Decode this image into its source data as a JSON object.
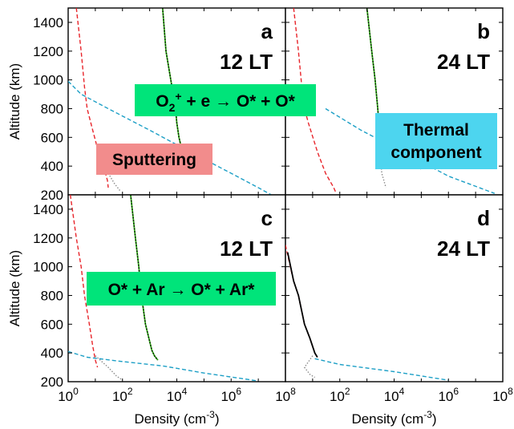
{
  "chart_data": [
    {
      "panel": "a",
      "local_time": "12 LT",
      "type": "line",
      "xlabel": "Density (cm-3)",
      "ylabel": "Altitude (km)",
      "x_scale": "log",
      "xlim": [
        1,
        100000000
      ],
      "ylim": [
        200,
        1500
      ],
      "series": [
        {
          "color": "#e8242a",
          "style": "dashed",
          "points": [
            [
              2,
              1500
            ],
            [
              3,
              1200
            ],
            [
              4,
              950
            ],
            [
              5,
              800
            ],
            [
              8,
              650
            ],
            [
              13,
              500
            ],
            [
              20,
              400
            ],
            [
              28,
              300
            ],
            [
              30,
              250
            ]
          ]
        },
        {
          "color": "#1c9fc6",
          "style": "dashed",
          "points": [
            [
              1,
              990
            ],
            [
              3,
              900
            ],
            [
              30,
              800
            ],
            [
              1000,
              650
            ],
            [
              30000,
              500
            ],
            [
              1000000,
              350
            ],
            [
              10000000,
              250
            ],
            [
              30000000,
              200
            ]
          ]
        },
        {
          "color": "#35b21b",
          "style": "solid",
          "points": [
            [
              3000,
              1500
            ],
            [
              4000,
              1200
            ],
            [
              6000,
              1000
            ],
            [
              9000,
              800
            ],
            [
              10000,
              700
            ],
            [
              12000,
              600
            ],
            [
              15000,
              520
            ],
            [
              30000,
              480
            ],
            [
              80000,
              400
            ],
            [
              150000,
              350
            ]
          ]
        },
        {
          "color": "#000000",
          "style": "dotted",
          "points": [
            [
              3000,
              1500
            ],
            [
              4000,
              1200
            ],
            [
              6000,
              1000
            ],
            [
              9000,
              800
            ],
            [
              10000,
              700
            ],
            [
              12000,
              600
            ],
            [
              15000,
              520
            ],
            [
              30000,
              480
            ],
            [
              80000,
              400
            ],
            [
              150000,
              350
            ]
          ]
        },
        {
          "color": "#8a8a8a",
          "style": "dotted",
          "points": [
            [
              30,
              350
            ],
            [
              50,
              280
            ],
            [
              80,
              230
            ]
          ]
        }
      ],
      "annotations": [
        {
          "text_parts": [
            "O",
            "2",
            "+",
            " + e → O* + O*"
          ],
          "color": "#00e47a"
        },
        {
          "text": "Sputtering",
          "color": "#f28c8c"
        }
      ]
    },
    {
      "panel": "b",
      "local_time": "24 LT",
      "type": "line",
      "xlabel": "Density (cm-3)",
      "x_scale": "log",
      "xlim": [
        1,
        100000000
      ],
      "ylim": [
        200,
        1500
      ],
      "series": [
        {
          "color": "#e8242a",
          "style": "dashed",
          "points": [
            [
              2,
              1500
            ],
            [
              3,
              1200
            ],
            [
              4,
              950
            ],
            [
              5,
              800
            ],
            [
              7,
              700
            ],
            [
              15,
              500
            ],
            [
              30,
              350
            ],
            [
              60,
              250
            ],
            [
              70,
              220
            ]
          ]
        },
        {
          "color": "#1c9fc6",
          "style": "dashed",
          "points": [
            [
              30,
              800
            ],
            [
              600,
              650
            ],
            [
              20000,
              500
            ],
            [
              1000000,
              330
            ],
            [
              50000000,
              210
            ]
          ]
        },
        {
          "color": "#35b21b",
          "style": "solid",
          "points": [
            [
              1000,
              1500
            ],
            [
              1500,
              1200
            ],
            [
              2000,
              1000
            ],
            [
              2500,
              800
            ],
            [
              3000,
              600
            ],
            [
              4000,
              500
            ]
          ]
        },
        {
          "color": "#000000",
          "style": "dotted",
          "points": [
            [
              1000,
              1500
            ],
            [
              1500,
              1200
            ],
            [
              2000,
              1000
            ],
            [
              2500,
              800
            ],
            [
              3000,
              600
            ],
            [
              4000,
              500
            ],
            [
              20000,
              420
            ],
            [
              100000,
              380
            ]
          ]
        },
        {
          "color": "#8a8a8a",
          "style": "dotted",
          "points": [
            [
              3000,
              500
            ],
            [
              3500,
              350
            ],
            [
              5000,
              250
            ]
          ]
        }
      ],
      "annotations": [
        {
          "text_lines": [
            "Thermal",
            "component"
          ],
          "color": "#4dd5ef"
        }
      ]
    },
    {
      "panel": "c",
      "local_time": "12 LT",
      "type": "line",
      "xlabel": "Density (cm-3)",
      "ylabel": "Altitude (km)",
      "x_scale": "log",
      "xlim": [
        1,
        100000000
      ],
      "ylim": [
        200,
        1500
      ],
      "series": [
        {
          "color": "#e8242a",
          "style": "dashed",
          "points": [
            [
              1.2,
              1500
            ],
            [
              2,
              1200
            ],
            [
              3,
              1000
            ],
            [
              4,
              800
            ],
            [
              6,
              600
            ],
            [
              8,
              450
            ],
            [
              10,
              350
            ],
            [
              12,
              300
            ]
          ]
        },
        {
          "color": "#1c9fc6",
          "style": "dashed",
          "points": [
            [
              1,
              410
            ],
            [
              5,
              370
            ],
            [
              100,
              340
            ],
            [
              3000,
              310
            ],
            [
              100000,
              260
            ],
            [
              10000000,
              205
            ]
          ]
        },
        {
          "color": "#35b21b",
          "style": "solid",
          "points": [
            [
              200,
              1500
            ],
            [
              300,
              1200
            ],
            [
              400,
              1000
            ],
            [
              500,
              800
            ],
            [
              700,
              600
            ],
            [
              1200,
              420
            ],
            [
              1500,
              380
            ],
            [
              2000,
              350
            ]
          ]
        },
        {
          "color": "#000000",
          "style": "dotted",
          "points": [
            [
              200,
              1500
            ],
            [
              300,
              1200
            ],
            [
              400,
              1000
            ],
            [
              500,
              800
            ],
            [
              700,
              600
            ],
            [
              1200,
              420
            ],
            [
              1500,
              380
            ],
            [
              2000,
              350
            ]
          ]
        },
        {
          "color": "#8a8a8a",
          "style": "dotted",
          "points": [
            [
              10,
              380
            ],
            [
              30,
              300
            ],
            [
              60,
              240
            ],
            [
              100,
              210
            ]
          ]
        }
      ],
      "annotations": [
        {
          "text": "O* + Ar → O* + Ar*",
          "color": "#00e47a"
        }
      ]
    },
    {
      "panel": "d",
      "local_time": "24 LT",
      "type": "line",
      "xlabel": "Density (cm-3)",
      "x_scale": "log",
      "xlim": [
        1,
        100000000
      ],
      "ylim": [
        200,
        1500
      ],
      "series": [
        {
          "color": "#e8242a",
          "style": "dashed",
          "points": [
            [
              1,
              1150
            ],
            [
              1.5,
              1000
            ],
            [
              2,
              900
            ],
            [
              3,
              800
            ],
            [
              5,
              600
            ],
            [
              8,
              500
            ],
            [
              12,
              400
            ],
            [
              15,
              370
            ]
          ]
        },
        {
          "color": "#000000",
          "style": "solid",
          "points": [
            [
              1.2,
              1100
            ],
            [
              2,
              900
            ],
            [
              3,
              800
            ],
            [
              5,
              600
            ],
            [
              8,
              500
            ],
            [
              12,
              400
            ],
            [
              15,
              370
            ]
          ]
        },
        {
          "color": "#1c9fc6",
          "style": "dashed",
          "points": [
            [
              12,
              360
            ],
            [
              100,
              320
            ],
            [
              10000,
              270
            ],
            [
              1000000,
              210
            ]
          ]
        },
        {
          "color": "#8a8a8a",
          "style": "dotted",
          "points": [
            [
              10,
              380
            ],
            [
              5,
              300
            ],
            [
              8,
              250
            ],
            [
              12,
              230
            ]
          ]
        }
      ]
    }
  ],
  "axes": {
    "y_ticks": [
      "200",
      "400",
      "600",
      "800",
      "1000",
      "1200",
      "1400"
    ],
    "y_tick_values": [
      200,
      400,
      600,
      800,
      1000,
      1200,
      1400
    ],
    "x_ticks_left": [
      {
        "base": "10",
        "exp": "0",
        "value": 1
      },
      {
        "base": "10",
        "exp": "2",
        "value": 100
      },
      {
        "base": "10",
        "exp": "4",
        "value": 10000
      },
      {
        "base": "10",
        "exp": "6",
        "value": 1000000
      },
      {
        "base": "10",
        "exp": "8",
        "value": 100000000
      }
    ],
    "x_ticks_right": [
      {
        "base": "10",
        "exp": "2",
        "value": 100
      },
      {
        "base": "10",
        "exp": "4",
        "value": 10000
      },
      {
        "base": "10",
        "exp": "6",
        "value": 1000000
      },
      {
        "base": "10",
        "exp": "8",
        "value": 100000000
      }
    ],
    "ylabel": "Altitude (km)",
    "xlabel_main": "Density (cm",
    "xlabel_sup": "-3",
    "xlabel_close": ")"
  }
}
